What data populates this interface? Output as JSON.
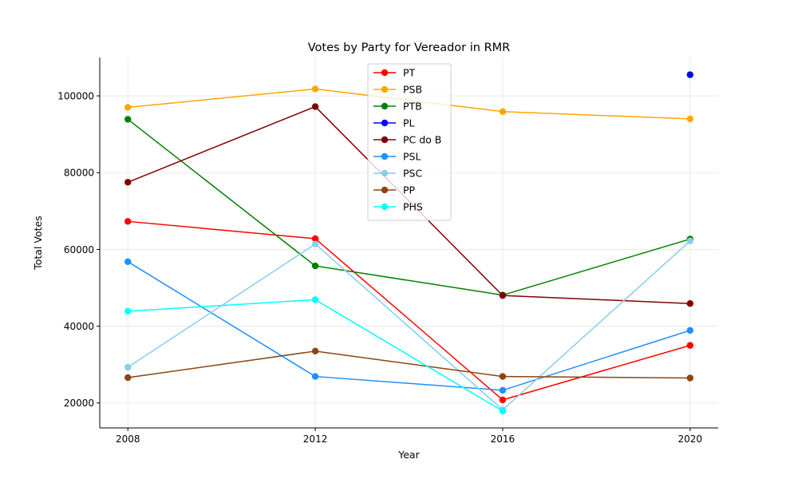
{
  "chart_data": {
    "type": "line",
    "title": "Votes by Party for Vereador in RMR",
    "xlabel": "Year",
    "ylabel": "Total Votes",
    "x": [
      2008,
      2012,
      2016,
      2020
    ],
    "xlim": [
      2007.4,
      2020.6
    ],
    "ylim": [
      13500,
      110000
    ],
    "yticks": [
      20000,
      40000,
      60000,
      80000,
      100000
    ],
    "grid": true,
    "legend_position": "top-center",
    "series": [
      {
        "name": "PT",
        "color": "#ff0000",
        "values": [
          67300,
          62800,
          20800,
          35000
        ]
      },
      {
        "name": "PSB",
        "color": "#ffa500",
        "values": [
          97000,
          101800,
          95900,
          94000
        ]
      },
      {
        "name": "PTB",
        "color": "#008000",
        "values": [
          93900,
          55700,
          48100,
          62700
        ]
      },
      {
        "name": "PL",
        "color": "#0000ff",
        "values": [
          null,
          null,
          null,
          105500
        ]
      },
      {
        "name": "PC do B",
        "color": "#800000",
        "values": [
          77500,
          97200,
          48000,
          45900
        ]
      },
      {
        "name": "PSL",
        "color": "#1e90ff",
        "values": [
          56800,
          26900,
          23300,
          38900
        ]
      },
      {
        "name": "PSC",
        "color": "#87ceeb",
        "values": [
          29300,
          61400,
          18200,
          62200
        ]
      },
      {
        "name": "PP",
        "color": "#8b4513",
        "values": [
          26600,
          33500,
          26900,
          26500
        ]
      },
      {
        "name": "PHS",
        "color": "#00ffff",
        "values": [
          43900,
          46900,
          17900,
          null
        ]
      }
    ]
  }
}
